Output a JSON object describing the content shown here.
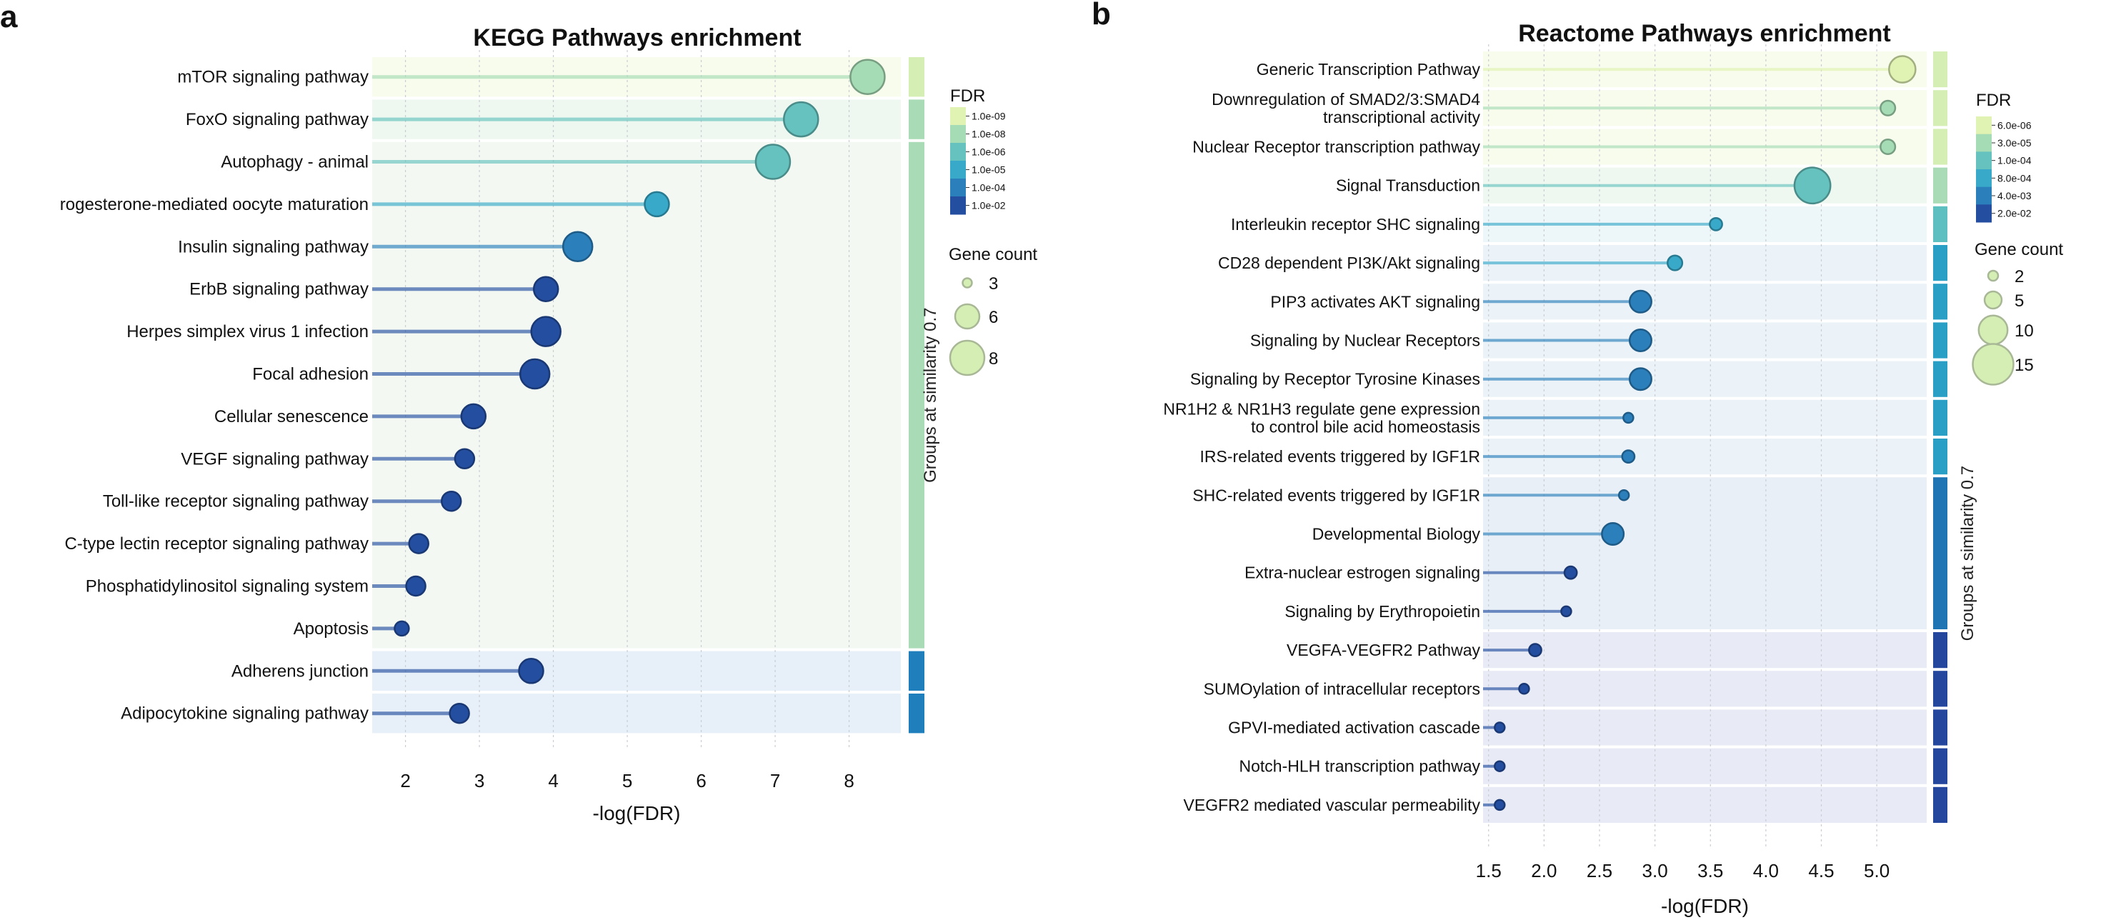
{
  "panel_labels": [
    "a",
    "b"
  ],
  "chart_data": [
    {
      "type": "lollipop",
      "title": "KEGG Pathways enrichment",
      "xlabel": "-log(FDR)",
      "xlim": [
        1.55,
        8.7
      ],
      "xticks": [
        2,
        3,
        4,
        5,
        6,
        7,
        8
      ],
      "grid": true,
      "legend_placement": "right",
      "group_axis_label": "Groups at similarity 0.7",
      "categories": [
        "mTOR signaling pathway",
        "FoxO signaling pathway",
        "Autophagy - animal",
        "rogesterone-mediated oocyte maturation",
        "Insulin signaling pathway",
        "ErbB signaling pathway",
        "Herpes simplex virus 1 infection",
        "Focal adhesion",
        "Cellular senescence",
        "VEGF signaling pathway",
        "Toll-like receptor signaling pathway",
        "C-type lectin receptor signaling pathway",
        "Phosphatidylinositol signaling system",
        "Apoptosis",
        "Adherens junction",
        "Adipocytokine signaling pathway"
      ],
      "values": [
        8.25,
        7.35,
        6.97,
        5.4,
        4.33,
        3.9,
        3.9,
        3.75,
        2.92,
        2.8,
        2.62,
        2.18,
        2.14,
        1.95,
        3.7,
        2.73
      ],
      "fdr": [
        5.6e-09,
        4.5e-08,
        1.1e-07,
        4e-06,
        4.7e-05,
        0.00013,
        0.00013,
        0.00018,
        0.0012,
        0.0016,
        0.0024,
        0.0066,
        0.0072,
        0.011,
        0.0002,
        0.0019
      ],
      "gene_count": [
        8,
        8,
        8,
        6,
        7,
        6,
        7,
        7,
        6,
        5,
        5,
        5,
        5,
        4,
        6,
        5
      ],
      "groups": [
        {
          "rows": [
            0
          ],
          "color": "#d5eeb3",
          "band": "#f7fcec"
        },
        {
          "rows": [
            1
          ],
          "color": "#a9dcb6",
          "band": "#eef8f0"
        },
        {
          "rows": [
            2,
            3,
            4,
            5,
            6,
            7,
            8,
            9,
            10,
            11,
            12,
            13
          ],
          "color": "#a9dcb6",
          "band": "#f3f9f2",
          "label": "Groups at similarity 0.7"
        },
        {
          "rows": [
            14
          ],
          "color": "#1f7fbd",
          "band": "#e7f0f9"
        },
        {
          "rows": [
            15
          ],
          "color": "#1f7fbd",
          "band": "#e7f0f9"
        }
      ],
      "legend": {
        "fdr_title": "FDR",
        "fdr_ticks": [
          "1.0e-09",
          "1.0e-08",
          "1.0e-06",
          "1.0e-05",
          "1.0e-04",
          "1.0e-02"
        ],
        "fdr_colors": [
          "#e1f3b2",
          "#a6dcb5",
          "#66c2be",
          "#38a9c9",
          "#2b7fbb",
          "#244ea0"
        ],
        "count_title": "Gene count",
        "count_values": [
          3,
          6,
          8
        ]
      }
    },
    {
      "type": "lollipop",
      "title": "Reactome Pathways enrichment",
      "xlabel": "-log(FDR)",
      "xlim": [
        1.45,
        5.45
      ],
      "xticks": [
        "1.5",
        "2.0",
        "2.5",
        "3.0",
        "3.5",
        "4.0",
        "4.5",
        "5.0"
      ],
      "grid": true,
      "legend_placement": "right",
      "group_axis_label": "Groups at similarity 0.7",
      "categories": [
        [
          "Generic Transcription Pathway"
        ],
        [
          "Downregulation of SMAD2/3:SMAD4",
          "transcriptional activity"
        ],
        [
          "Nuclear Receptor transcription pathway"
        ],
        [
          "Signal Transduction"
        ],
        [
          "Interleukin receptor SHC signaling"
        ],
        [
          "CD28 dependent PI3K/Akt signaling"
        ],
        [
          "PIP3 activates AKT signaling"
        ],
        [
          "Signaling by Nuclear Receptors"
        ],
        [
          "Signaling by Receptor Tyrosine Kinases"
        ],
        [
          "NR1H2 & NR1H3 regulate gene expression",
          "to control bile acid homeostasis"
        ],
        [
          "IRS-related events triggered by IGF1R"
        ],
        [
          "SHC-related events triggered by IGF1R"
        ],
        [
          "Developmental Biology"
        ],
        [
          "Extra-nuclear estrogen signaling"
        ],
        [
          "Signaling by Erythropoietin"
        ],
        [
          "VEGFA-VEGFR2 Pathway"
        ],
        [
          "SUMOylation of intracellular receptors"
        ],
        [
          "GPVI-mediated activation cascade"
        ],
        [
          "Notch-HLH transcription pathway"
        ],
        [
          "VEGFR2 mediated vascular permeability"
        ]
      ],
      "values": [
        5.23,
        5.1,
        5.1,
        4.42,
        3.55,
        3.18,
        2.87,
        2.87,
        2.87,
        2.76,
        2.76,
        2.72,
        2.62,
        2.24,
        2.2,
        1.92,
        1.82,
        1.6,
        1.6,
        1.6
      ],
      "fdr": [
        5.9e-06,
        7.9e-06,
        7.9e-06,
        3.8e-05,
        0.00028,
        0.00066,
        0.0013,
        0.0013,
        0.0013,
        0.0017,
        0.0017,
        0.0019,
        0.0024,
        0.0058,
        0.0063,
        0.012,
        0.015,
        0.025,
        0.025,
        0.025
      ],
      "gene_count": [
        9,
        4,
        4,
        13,
        3,
        4,
        7,
        7,
        7,
        2,
        3,
        2,
        7,
        3,
        2,
        3,
        2,
        2,
        2,
        2
      ],
      "groups": [
        {
          "rows": [
            0
          ],
          "color": "#d5eeb3",
          "band": "#f7fcec"
        },
        {
          "rows": [
            1
          ],
          "color": "#d5eeb3",
          "band": "#f7fcec"
        },
        {
          "rows": [
            2
          ],
          "color": "#d5eeb3",
          "band": "#f7fcec"
        },
        {
          "rows": [
            3
          ],
          "color": "#a9dcb6",
          "band": "#eff8f0"
        },
        {
          "rows": [
            4
          ],
          "color": "#5dbfc0",
          "band": "#edf6f8"
        },
        {
          "rows": [
            5
          ],
          "color": "#2a9fc6",
          "band": "#ebf3f8"
        },
        {
          "rows": [
            6
          ],
          "color": "#2a9fc6",
          "band": "#ebf3f8"
        },
        {
          "rows": [
            7
          ],
          "color": "#2a9fc6",
          "band": "#ebf3f8"
        },
        {
          "rows": [
            8
          ],
          "color": "#2a9fc6",
          "band": "#ebf3f8"
        },
        {
          "rows": [
            9
          ],
          "color": "#2a9fc6",
          "band": "#ebf3f8"
        },
        {
          "rows": [
            10
          ],
          "color": "#2a9fc6",
          "band": "#ebf3f8"
        },
        {
          "rows": [
            11,
            12,
            13,
            14
          ],
          "color": "#1f74b4",
          "band": "#e9eff7",
          "label": "Groups at similarity 0.7"
        },
        {
          "rows": [
            15
          ],
          "color": "#24479d",
          "band": "#e8ebf5"
        },
        {
          "rows": [
            16
          ],
          "color": "#24479d",
          "band": "#e8ebf5"
        },
        {
          "rows": [
            17
          ],
          "color": "#24479d",
          "band": "#e8ebf5"
        },
        {
          "rows": [
            18
          ],
          "color": "#24479d",
          "band": "#e8ebf5"
        },
        {
          "rows": [
            19
          ],
          "color": "#24479d",
          "band": "#e8ebf5"
        }
      ],
      "legend": {
        "fdr_title": "FDR",
        "fdr_ticks": [
          "6.0e-06",
          "3.0e-05",
          "1.0e-04",
          "8.0e-04",
          "4.0e-03",
          "2.0e-02"
        ],
        "fdr_colors": [
          "#e1f3b2",
          "#a6dcb5",
          "#66c2be",
          "#38a9c9",
          "#2b7fbb",
          "#244ea0"
        ],
        "count_title": "Gene count",
        "count_values": [
          2,
          5,
          10,
          15
        ]
      }
    }
  ]
}
